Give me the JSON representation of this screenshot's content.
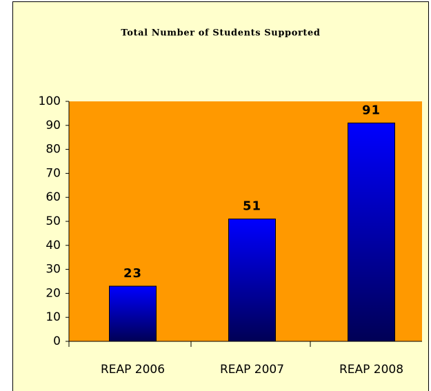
{
  "chart_data": {
    "type": "bar",
    "title": "Total Number of Students Supported",
    "categories": [
      "REAP 2006",
      "REAP 2007",
      "REAP 2008"
    ],
    "values": [
      23,
      51,
      91
    ],
    "color": "#0000ff",
    "plot_color": "#ff9900",
    "background": "#ffffcc",
    "ylim": [
      0,
      100
    ],
    "yticks": [
      0,
      10,
      20,
      30,
      40,
      50,
      60,
      70,
      80,
      90,
      100
    ],
    "grid": false
  }
}
